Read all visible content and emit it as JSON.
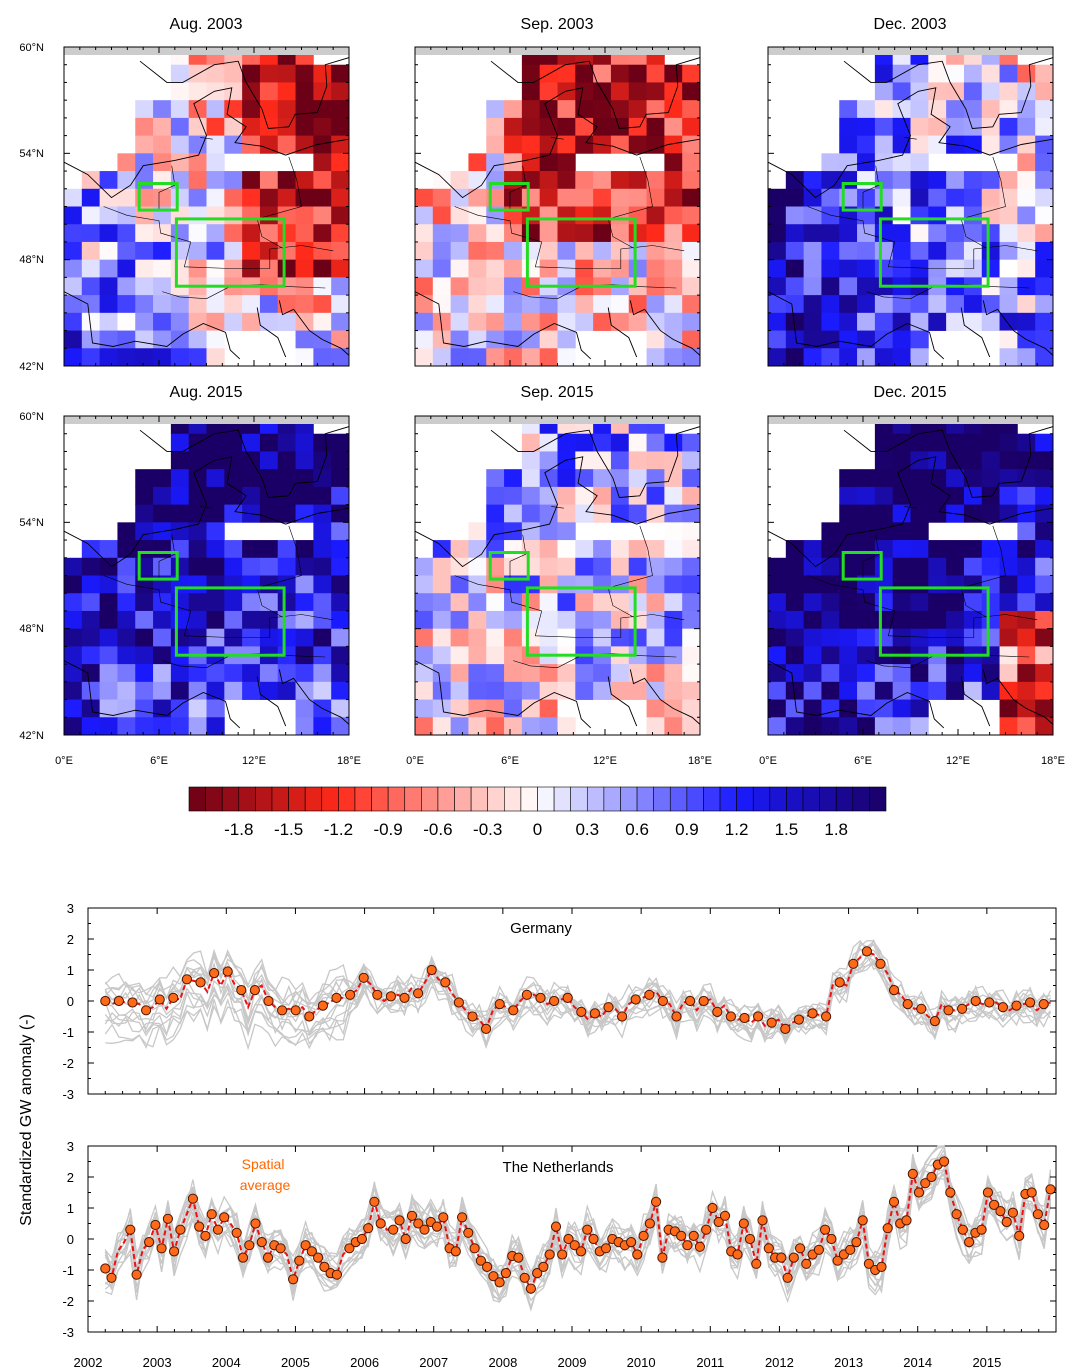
{
  "maps": {
    "panels": [
      {
        "title": "Aug. 2003"
      },
      {
        "title": "Sep. 2003"
      },
      {
        "title": "Dec. 2003"
      },
      {
        "title": "Aug. 2015"
      },
      {
        "title": "Sep. 2015"
      },
      {
        "title": "Dec. 2015"
      }
    ],
    "lat_labels": [
      "60°N",
      "54°N",
      "48°N",
      "42°N"
    ],
    "lon_labels": [
      "0°E",
      "6°E",
      "12°E",
      "18°E"
    ],
    "lat_ticks": [
      60,
      54,
      48,
      42
    ],
    "lon_ticks": [
      0,
      6,
      12,
      18
    ],
    "extent": {
      "lon": [
        0,
        18
      ],
      "lat": [
        42,
        60
      ]
    },
    "box_color": "#22dd22",
    "colorbar": {
      "min": -2.1,
      "max": 2.1,
      "step": 0.1,
      "tick_values": [
        -1.8,
        -1.5,
        -1.2,
        -0.9,
        -0.6,
        -0.3,
        0,
        0.3,
        0.6,
        0.9,
        1.2,
        1.5,
        1.8
      ],
      "tick_labels": [
        "-1.8",
        "-1.5",
        "-1.2",
        "-0.9",
        "-0.6",
        "-0.3",
        "0",
        "0.3",
        "0.6",
        "0.9",
        "1.2",
        "1.5",
        "1.8"
      ],
      "colors": {
        "negative_extreme": "#6b0016",
        "negative": "#ff2a1a",
        "neutral": "#ffffff",
        "positive": "#1a1aff",
        "positive_extreme": "#1a0066"
      }
    }
  },
  "chart_data": [
    {
      "type": "line",
      "title": "Germany",
      "xlim": [
        2002,
        2016
      ],
      "ylim": [
        -3,
        3
      ],
      "y_ticks": [
        3,
        2,
        1,
        0,
        -1,
        -2,
        -3
      ],
      "y_tick_labels": [
        "3",
        "2",
        "1",
        "0",
        "-1",
        "-2",
        "-3"
      ],
      "series": [
        {
          "values": [
            0.0,
            -0.1,
            0.0,
            -0.05,
            -0.05,
            -0.1,
            -0.3,
            -0.2,
            0.05,
            -0.25,
            0.1,
            0.05,
            0.7,
            0.65,
            0.6,
            0.3,
            0.9,
            0.5,
            0.95,
            0.55,
            0.35,
            -0.2,
            0.35,
            0.5,
            0.0,
            -0.2,
            -0.3,
            -0.25,
            -0.3,
            -0.2,
            -0.5,
            -0.3,
            -0.15,
            -0.05,
            0.1,
            0.1,
            0.2,
            0.35,
            0.75,
            0.55,
            0.2,
            0.0,
            0.15,
            0.2,
            0.1,
            0.4,
            0.25,
            0.6,
            1.0,
            0.7,
            0.6,
            0.25,
            -0.05,
            -0.3,
            -0.5,
            -0.6,
            -0.9,
            -0.3,
            -0.1,
            -0.2,
            -0.3,
            0.0,
            0.2,
            0.2,
            0.1,
            -0.1,
            0.0,
            0.05,
            0.1,
            -0.2,
            -0.35,
            -0.6,
            -0.4,
            -0.5,
            -0.2,
            -0.25,
            -0.5,
            -0.1,
            0.05,
            0.1,
            0.2,
            0.3,
            0.0,
            -0.1,
            -0.5,
            -0.05,
            0.0,
            -0.3,
            0.0,
            0.05,
            -0.35,
            -0.15,
            -0.5,
            -0.6,
            -0.55,
            -0.7,
            -0.5,
            -0.8,
            -0.7,
            -0.6,
            -0.9,
            -0.7,
            -0.6,
            -0.5,
            -0.4,
            -0.45,
            -0.5,
            0.55,
            0.6,
            0.5,
            1.2,
            1.4,
            1.6,
            1.5,
            1.2,
            0.9,
            0.35,
            0.2,
            -0.1,
            -0.25,
            -0.25,
            -0.5,
            -0.65,
            -0.1,
            -0.3,
            -0.3,
            -0.25,
            -0.1,
            0.0,
            -0.1,
            -0.05,
            -0.05,
            -0.2,
            -0.3,
            -0.15,
            -0.1,
            -0.05,
            -0.3,
            -0.1,
            -0.05
          ],
          "marker_indices": [
            0,
            2,
            4,
            6,
            8,
            10,
            12,
            14,
            16,
            18,
            20,
            22,
            24,
            26,
            28,
            30,
            32,
            34,
            36,
            38,
            40,
            42,
            44,
            46,
            48,
            50,
            52,
            54,
            56,
            58,
            60,
            62,
            64,
            66,
            68,
            70,
            72,
            74,
            76,
            78,
            80,
            82,
            84,
            86,
            88,
            90,
            92,
            94,
            96,
            98,
            100,
            102,
            104,
            106,
            108,
            110,
            112,
            114,
            116,
            118,
            120,
            122,
            124,
            126,
            128,
            130,
            132,
            134,
            136,
            138,
            140,
            142,
            144,
            146,
            148,
            150,
            152,
            154,
            156,
            158
          ]
        }
      ]
    },
    {
      "type": "line",
      "title": "The Netherlands",
      "xlim": [
        2002,
        2016
      ],
      "ylim": [
        -3,
        3
      ],
      "y_ticks": [
        3,
        2,
        1,
        0,
        -1,
        -2,
        -3
      ],
      "y_tick_labels": [
        "3",
        "2",
        "1",
        "0",
        "-1",
        "-2",
        "-3"
      ],
      "x_tick_labels": [
        "2002",
        "2003",
        "2004",
        "2005",
        "2006",
        "2007",
        "2008",
        "2009",
        "2010",
        "2011",
        "2012",
        "2013",
        "2014",
        "2015"
      ],
      "x_ticks": [
        2002,
        2003,
        2004,
        2005,
        2006,
        2007,
        2008,
        2009,
        2010,
        2011,
        2012,
        2013,
        2014,
        2015
      ],
      "annotation": "Spatial average",
      "annotation_color": "#ff6600",
      "series": [
        {
          "values": [
            -0.95,
            -1.25,
            -0.4,
            -0.1,
            0.3,
            -1.15,
            -0.35,
            -0.1,
            0.45,
            -0.3,
            0.65,
            -0.4,
            0.3,
            0.8,
            1.3,
            0.4,
            0.1,
            0.8,
            0.3,
            0.7,
            0.5,
            0.2,
            -0.6,
            -0.2,
            0.5,
            -0.1,
            -0.6,
            -0.2,
            -0.3,
            -0.5,
            -1.3,
            -0.7,
            -0.2,
            -0.4,
            -0.6,
            -0.9,
            -1.1,
            -1.15,
            -0.5,
            -0.3,
            -0.1,
            0.0,
            0.35,
            1.2,
            0.5,
            0.3,
            0.3,
            0.6,
            0.0,
            0.75,
            0.5,
            0.3,
            0.55,
            0.4,
            0.7,
            -0.3,
            -0.4,
            0.7,
            0.2,
            -0.3,
            -0.7,
            -0.9,
            -1.2,
            -1.4,
            -1.1,
            -0.55,
            -0.6,
            -1.25,
            -1.6,
            -1.1,
            -0.9,
            -0.5,
            0.4,
            -0.5,
            0.0,
            -0.2,
            -0.4,
            0.3,
            0.0,
            -0.4,
            -0.3,
            0.0,
            -0.1,
            -0.2,
            -0.1,
            -0.5,
            0.1,
            0.5,
            1.2,
            -0.6,
            0.3,
            0.25,
            0.1,
            -0.2,
            0.1,
            -0.25,
            0.3,
            1.0,
            0.55,
            0.75,
            -0.4,
            -0.5,
            0.5,
            0.0,
            -0.8,
            0.6,
            -0.3,
            -0.6,
            -0.6,
            -1.25,
            -0.6,
            -0.3,
            -0.8,
            -0.5,
            -0.35,
            0.3,
            0.0,
            -0.7,
            -0.5,
            -0.35,
            -0.1,
            0.6,
            -0.8,
            -1.0,
            -0.9,
            0.35,
            1.2,
            0.5,
            0.6,
            2.1,
            1.5,
            1.8,
            2.0,
            2.4,
            2.5,
            1.5,
            0.8,
            0.3,
            -0.1,
            0.2,
            0.3,
            1.5,
            1.1,
            0.9,
            0.55,
            0.85,
            0.1,
            1.45,
            1.5,
            0.8,
            0.45,
            1.6
          ],
          "marker_indices": [
            0,
            1,
            4,
            5,
            7,
            8,
            9,
            10,
            11,
            12,
            14,
            15,
            16,
            17,
            18,
            19,
            21,
            22,
            23,
            24,
            25,
            26,
            27,
            28,
            30,
            31,
            32,
            33,
            34,
            35,
            36,
            37,
            39,
            40,
            41,
            42,
            43,
            44,
            46,
            47,
            48,
            49,
            50,
            51,
            52,
            53,
            54,
            55,
            56,
            57,
            58,
            59,
            60,
            61,
            62,
            63,
            64,
            65,
            66,
            67,
            68,
            69,
            70,
            71,
            72,
            73,
            74,
            75,
            76,
            77,
            78,
            79,
            80,
            81,
            82,
            83,
            84,
            85,
            86,
            87,
            88,
            89,
            90,
            91,
            92,
            93,
            94,
            95,
            96,
            97,
            98,
            99,
            100,
            101,
            102,
            103,
            104,
            105,
            106,
            107,
            108,
            109,
            110,
            111,
            112,
            113,
            114,
            115,
            116,
            117,
            118,
            119,
            120,
            121,
            122,
            123,
            124,
            125,
            126,
            127,
            128,
            129,
            130,
            131,
            132,
            133,
            134,
            135,
            136,
            137,
            138,
            139,
            140,
            141,
            142,
            143,
            144,
            145,
            146,
            147,
            148,
            149,
            150,
            151,
            152
          ]
        }
      ]
    }
  ],
  "timeseries": {
    "ylabel": "Standardized GW anomaly (-)",
    "marker_fill": "#ff6a1a",
    "marker_stroke": "#4a1500",
    "line_color": "#ee1111",
    "ensemble_color": "#c8c8c8"
  }
}
